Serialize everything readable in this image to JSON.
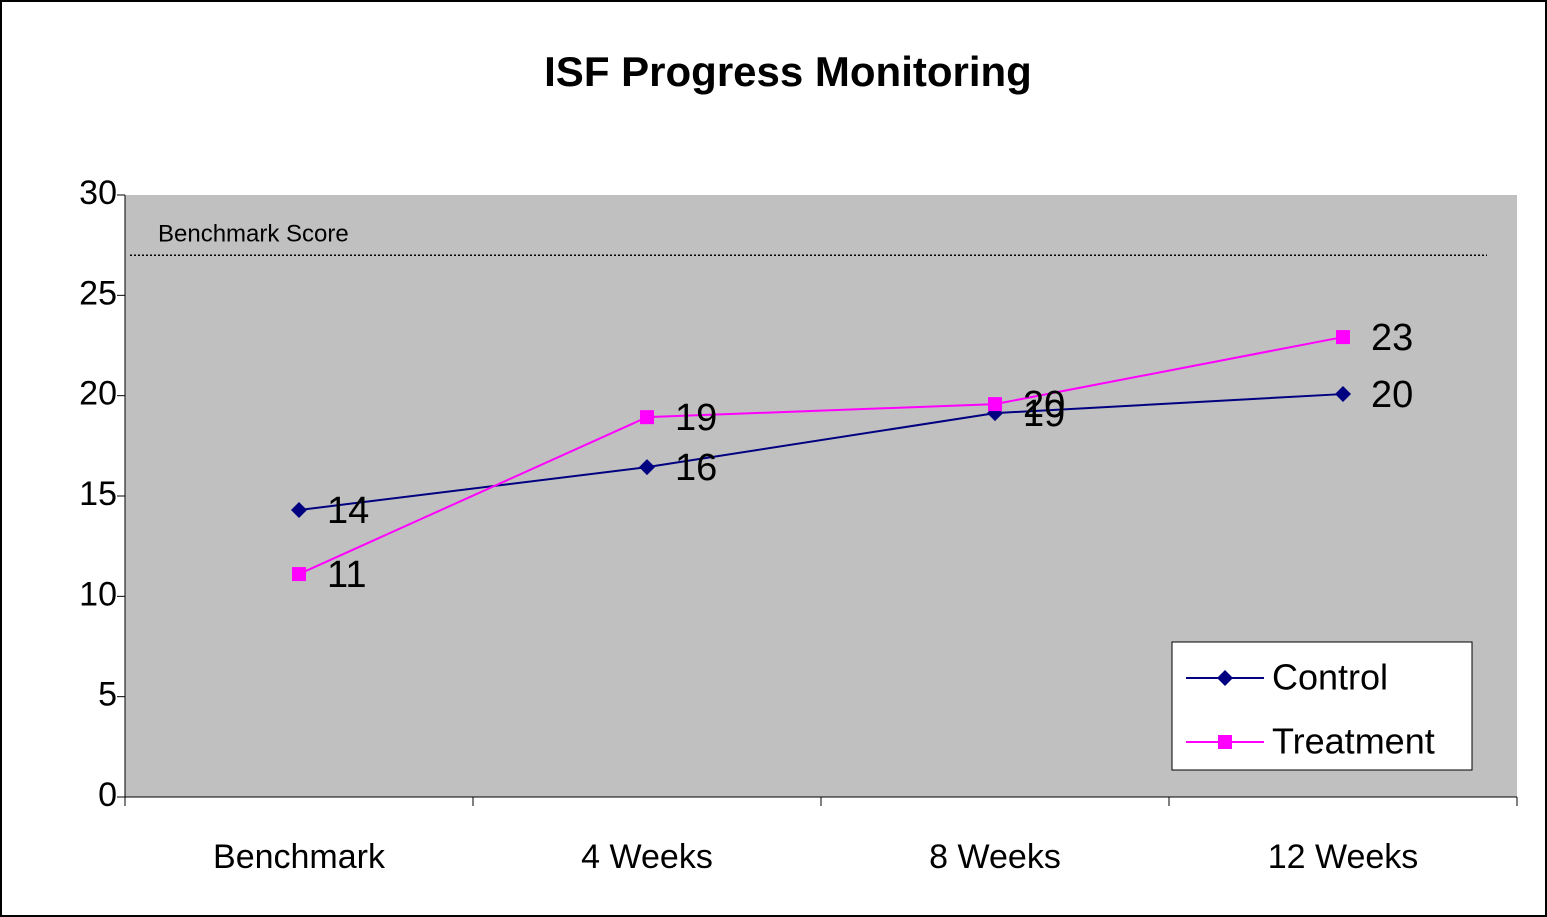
{
  "chart_data": {
    "type": "line",
    "title": "ISF Progress Monitoring",
    "categories": [
      "Benchmark",
      "4 Weeks",
      "8 Weeks",
      "12 Weeks"
    ],
    "series": [
      {
        "name": "Control",
        "color": "#000080",
        "marker": "diamond",
        "values": [
          14.3,
          16.44,
          19.13,
          20.08
        ],
        "value_labels": [
          "14",
          "16",
          "19",
          "20"
        ]
      },
      {
        "name": "Treatment",
        "color": "#ff00ff",
        "marker": "square",
        "values": [
          11.11,
          18.93,
          19.58,
          22.92
        ],
        "value_labels": [
          "11",
          "19",
          "20",
          "23"
        ]
      }
    ],
    "ylim": [
      0,
      30
    ],
    "yticks": [
      0,
      5,
      10,
      15,
      20,
      25,
      30
    ],
    "benchmark": {
      "label": "Benchmark Score",
      "value": 27
    },
    "legend": "lower right"
  }
}
